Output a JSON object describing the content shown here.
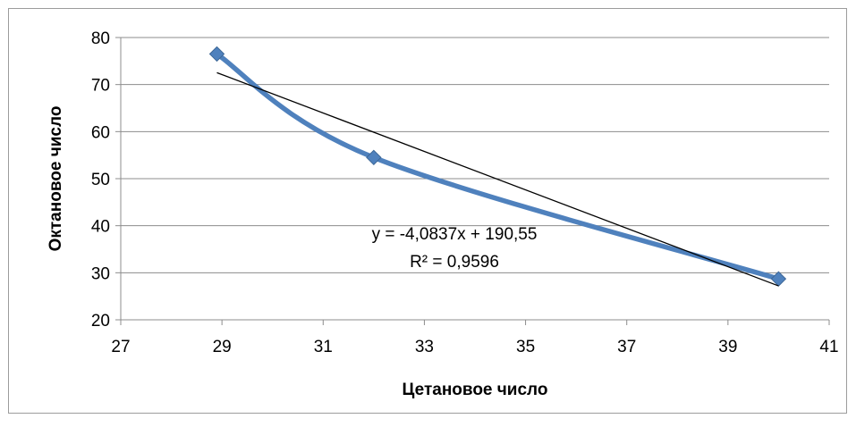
{
  "chart_data": {
    "type": "scatter",
    "title": "",
    "xlabel": "Цетановое число",
    "ylabel": "Октановое число",
    "xlim": [
      27,
      41
    ],
    "ylim": [
      20,
      80
    ],
    "xticks": [
      "27",
      "29",
      "31",
      "33",
      "35",
      "37",
      "39",
      "41"
    ],
    "yticks": [
      "20",
      "30",
      "40",
      "50",
      "60",
      "70",
      "80"
    ],
    "grid": "horizontal",
    "legend": "none",
    "series": [
      {
        "x": [
          28.9,
          32.0,
          40.0
        ],
        "y": [
          76.5,
          54.5,
          28.7
        ],
        "color": "#4f81bd",
        "marker": "diamond",
        "smooth": true
      }
    ],
    "trendline": {
      "type": "linear",
      "slope": -4.0837,
      "intercept": 190.55,
      "x_range": [
        28.9,
        40.0
      ],
      "color": "#000000",
      "equation": "y = -4,0837x + 190,55",
      "r_squared": "R² = 0,9596"
    }
  }
}
